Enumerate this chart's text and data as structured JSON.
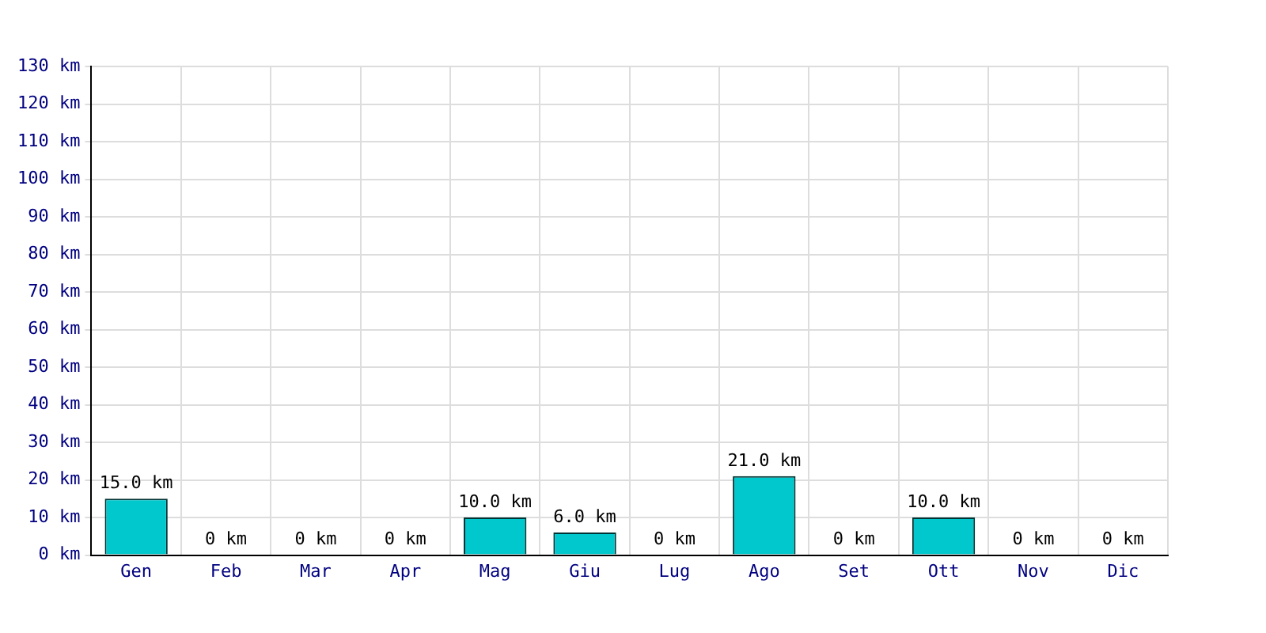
{
  "chart_data": {
    "type": "bar",
    "categories": [
      "Gen",
      "Feb",
      "Mar",
      "Apr",
      "Mag",
      "Giu",
      "Lug",
      "Ago",
      "Set",
      "Ott",
      "Nov",
      "Dic"
    ],
    "values": [
      15,
      0,
      0,
      0,
      10,
      6,
      0,
      21,
      0,
      10,
      0,
      0
    ],
    "value_labels": [
      "15.0 km",
      "0 km",
      "0 km",
      "0 km",
      "10.0 km",
      "6.0 km",
      "0 km",
      "21.0 km",
      "0 km",
      "10.0 km",
      "0 km",
      "0 km"
    ],
    "color": "#00c8cc",
    "ylim": [
      0,
      130
    ],
    "yticks": [
      {
        "value": 0,
        "label": "0 km"
      },
      {
        "value": 10,
        "label": "10 km"
      },
      {
        "value": 20,
        "label": "20 km"
      },
      {
        "value": 30,
        "label": "30 km"
      },
      {
        "value": 40,
        "label": "40 km"
      },
      {
        "value": 50,
        "label": "50 km"
      },
      {
        "value": 60,
        "label": "60 km"
      },
      {
        "value": 70,
        "label": "70 km"
      },
      {
        "value": 80,
        "label": "80 km"
      },
      {
        "value": 90,
        "label": "90 km"
      },
      {
        "value": 100,
        "label": "100 km"
      },
      {
        "value": 110,
        "label": "110 km"
      },
      {
        "value": 120,
        "label": "120 km"
      },
      {
        "value": 130,
        "label": "130 km"
      }
    ],
    "grid": true
  }
}
